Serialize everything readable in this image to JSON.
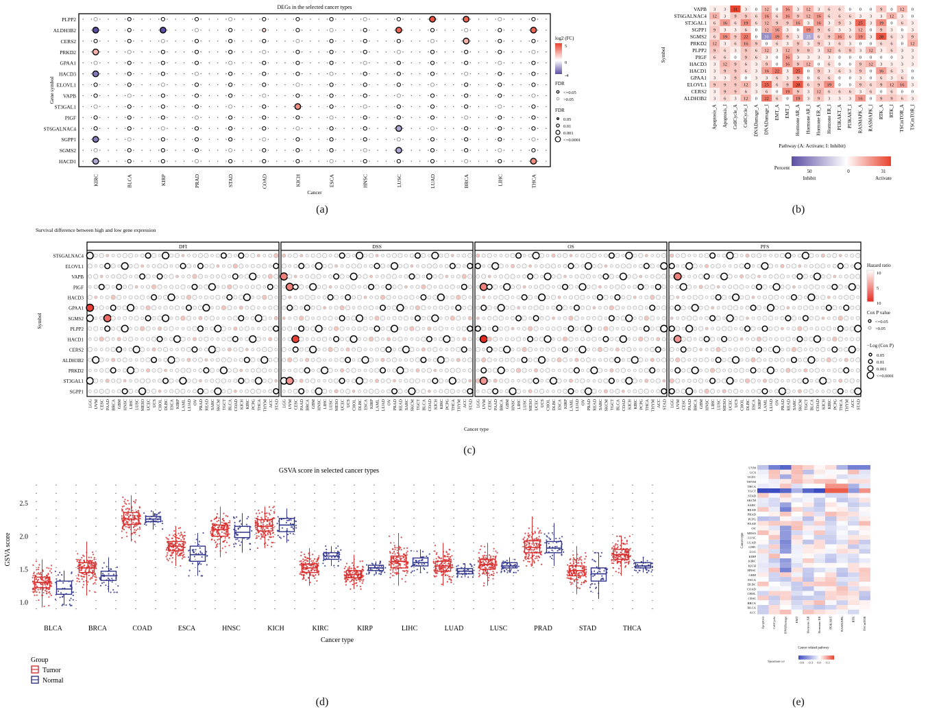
{
  "panel_letters": [
    "(a)",
    "(b)",
    "(c)",
    "(d)",
    "(e)"
  ],
  "chart_data": [
    {
      "id": "a",
      "type": "scatter",
      "title": "DEGs in the selected cancer types",
      "xlabel": "Cancer",
      "ylabel": "Gene symbol",
      "categories": [
        "KIRC",
        "BLCA",
        "KIRP",
        "PRAD",
        "STAD",
        "COAD",
        "KICH",
        "ESCA",
        "HNSC",
        "LUSC",
        "LUAD",
        "BRCA",
        "LIHC",
        "THCA"
      ],
      "genes": [
        "PLPP2",
        "ALDH3B2",
        "CERS2",
        "PRKD2",
        "GPAA1",
        "HACD3",
        "ELOVL1",
        "VAPB",
        "ST3GAL1",
        "PIGF",
        "ST6GALNAC4",
        "SGPP1",
        "SGMS2",
        "HACD1"
      ],
      "values": [
        [
          0,
          -0.5,
          0,
          0,
          0,
          0,
          0,
          0,
          0,
          0,
          4.5,
          4,
          0,
          0
        ],
        [
          -4,
          0,
          -4,
          0,
          0,
          1,
          0,
          0,
          0,
          4,
          0,
          0,
          0,
          4
        ],
        [
          0,
          0,
          0,
          0,
          0,
          0,
          0,
          0,
          0,
          0,
          0,
          2,
          0,
          0
        ],
        [
          2,
          0,
          0,
          0,
          0,
          0,
          0,
          0,
          0,
          0,
          0,
          0,
          0,
          0
        ],
        [
          0,
          0,
          0,
          0,
          0,
          0,
          0,
          0,
          0,
          0,
          0,
          0,
          0,
          0
        ],
        [
          -3,
          0,
          0,
          0,
          0,
          0,
          0,
          0,
          0,
          0,
          0,
          0,
          0,
          0
        ],
        [
          0,
          0,
          0,
          0,
          0,
          0,
          0,
          0,
          0,
          0,
          0,
          0,
          0,
          0
        ],
        [
          0,
          0,
          0,
          0,
          0,
          0,
          0,
          0,
          0,
          0,
          0,
          0,
          0,
          0
        ],
        [
          0,
          0,
          0,
          0,
          0,
          0,
          3,
          0,
          0,
          0,
          0,
          0,
          0,
          0
        ],
        [
          0,
          0,
          0,
          0,
          0,
          0,
          0,
          0,
          0,
          0,
          0,
          0,
          0,
          0
        ],
        [
          0,
          0,
          0,
          0,
          0,
          0,
          0,
          0,
          0,
          -2,
          0,
          0,
          0,
          0
        ],
        [
          -3,
          0,
          0,
          0,
          0,
          0,
          0,
          0,
          0,
          0,
          0,
          0,
          0,
          0
        ],
        [
          0,
          0,
          0,
          0,
          0,
          0,
          0,
          0,
          0,
          -2,
          0,
          0,
          0,
          0
        ],
        [
          -2,
          0,
          0,
          0,
          0,
          0,
          0,
          0,
          0,
          0,
          0,
          0,
          0,
          3
        ]
      ],
      "color_legend_title": "log2 (FC)",
      "color_ticks": [
        "5",
        "0",
        "-4"
      ],
      "fdr_legend": {
        "title": "FDR",
        "items": [
          "<=0.05",
          ">0.05"
        ]
      },
      "size_legend": {
        "title": "FDR",
        "items": [
          "0.05",
          "0.01",
          "0.001",
          "<=0.0001"
        ]
      },
      "colors": {
        "low": "#5b4ea3",
        "mid": "#ffffff",
        "high": "#e8412c"
      }
    },
    {
      "id": "b",
      "type": "heatmap",
      "title": "",
      "xlabel": "Pathway (A: Activate; I: Inhibit)",
      "ylabel": "Symbol",
      "rows": [
        "VAPB",
        "ST6GALNAC4",
        "ST3GAL1",
        "SGPP1",
        "SGMS2",
        "PRKD2",
        "PLPP2",
        "PIGF",
        "HACD3",
        "HACD1",
        "GPAA1",
        "ELOVL1",
        "CERS2",
        "ALDH3B2"
      ],
      "columns": [
        "Apoptosis_A",
        "Apoptosis_I",
        "CellCycle_A",
        "CellCycle_I",
        "DNADamage_A",
        "DNADamage_I",
        "EMT_A",
        "EMT_I",
        "Hormone AR_A",
        "Hormone AR_I",
        "Hormone ER_A",
        "Hormone ER_I",
        "PI3KAKT_A",
        "PI3KAKT_I",
        "RASMAPK_A",
        "RASMAPK_I",
        "RTK_A",
        "RTK_I",
        "TSCmTOR_A",
        "TSCmTOR_I"
      ],
      "values": [
        [
          3,
          3,
          31,
          3,
          0,
          12,
          0,
          16,
          3,
          12,
          3,
          6,
          6,
          0,
          0,
          0,
          9,
          0,
          12,
          0
        ],
        [
          12,
          3,
          9,
          9,
          6,
          16,
          6,
          16,
          9,
          12,
          16,
          6,
          6,
          6,
          3,
          3,
          3,
          12,
          3,
          0
        ],
        [
          6,
          16,
          6,
          19,
          6,
          12,
          9,
          9,
          16,
          3,
          16,
          3,
          9,
          3,
          25,
          3,
          19,
          0,
          6,
          3
        ],
        [
          9,
          3,
          3,
          6,
          0,
          12,
          16,
          3,
          0,
          19,
          9,
          6,
          3,
          3,
          12,
          0,
          9,
          3,
          0,
          3
        ],
        [
          6,
          19,
          9,
          22,
          0,
          -31,
          19,
          9,
          3,
          -25,
          6,
          9,
          16,
          6,
          19,
          3,
          28,
          6,
          3,
          9
        ],
        [
          12,
          3,
          6,
          16,
          9,
          0,
          6,
          3,
          9,
          3,
          9,
          3,
          6,
          3,
          0,
          0,
          6,
          6,
          0,
          12
        ],
        [
          9,
          6,
          3,
          9,
          6,
          12,
          3,
          12,
          9,
          9,
          3,
          12,
          6,
          9,
          3,
          12,
          3,
          6,
          3,
          3
        ],
        [
          6,
          6,
          0,
          9,
          6,
          3,
          0,
          16,
          3,
          3,
          3,
          3,
          0,
          0,
          0,
          0,
          0,
          0,
          3,
          3
        ],
        [
          3,
          12,
          9,
          6,
          3,
          9,
          0,
          16,
          9,
          12,
          0,
          6,
          0,
          0,
          9,
          12,
          3,
          3,
          3,
          3
        ],
        [
          3,
          9,
          9,
          6,
          3,
          16,
          22,
          3,
          25,
          0,
          9,
          3,
          6,
          3,
          9,
          0,
          16,
          6,
          3,
          0
        ],
        [
          3,
          3,
          9,
          0,
          3,
          3,
          6,
          3,
          9,
          0,
          6,
          6,
          0,
          0,
          3,
          0,
          6,
          3,
          6,
          0
        ],
        [
          9,
          9,
          9,
          12,
          3,
          25,
          6,
          9,
          28,
          6,
          9,
          19,
          0,
          0,
          9,
          6,
          9,
          12,
          16,
          3
        ],
        [
          3,
          9,
          9,
          6,
          3,
          6,
          0,
          19,
          9,
          3,
          12,
          6,
          6,
          6,
          3,
          6,
          0,
          6,
          0,
          0
        ],
        [
          3,
          6,
          3,
          12,
          0,
          22,
          6,
          0,
          19,
          3,
          9,
          3,
          3,
          3,
          16,
          0,
          9,
          9,
          6,
          3
        ]
      ],
      "legend_title": "Percent",
      "legend_ticks": [
        "50",
        "0",
        "31"
      ],
      "legend_labels": [
        "Inhibit",
        "Activate"
      ],
      "colors": {
        "low": "#5b4ea3",
        "mid": "#ffffff",
        "high": "#e8412c"
      }
    },
    {
      "id": "c",
      "type": "scatter",
      "title": "Survival difference between high and low gene expression",
      "xlabel": "Cancer type",
      "ylabel": "Symbol",
      "facets": [
        "DFI",
        "DSS",
        "OS",
        "PFS"
      ],
      "genes": [
        "ST6GALNAC4",
        "ELOVL1",
        "VAPB",
        "PIGF",
        "HACD3",
        "GPAA1",
        "SGMS2",
        "PLPP2",
        "HACD1",
        "CERS2",
        "ALDH3B2",
        "PRKD2",
        "ST3GAL1",
        "SGPP1"
      ],
      "cancers": {
        "DFI": [
          "LGG",
          "UVM",
          "CESC",
          "PAAD",
          "BRCA",
          "GBM",
          "HNSC",
          "LIHC",
          "LUSC",
          "MESO",
          "UCEC",
          "UCS",
          "CHOL",
          "DLBC",
          "ESCA",
          "KIRP",
          "LAML",
          "LUAD",
          "OV",
          "PRAD",
          "READ",
          "SARC",
          "SKCM",
          "TGCT",
          "BLCA",
          "COAD",
          "KICH",
          "KIRC",
          "PCPG",
          "THCA",
          "THYM",
          "ACC",
          "STAD"
        ],
        "DSS": [
          "LGG",
          "UVM",
          "CESC",
          "PAAD",
          "BRCA",
          "GBM",
          "HNSC",
          "LIHC",
          "LUSC",
          "MESO",
          "UCEC",
          "UCS",
          "CHOL",
          "DLBC",
          "ESCA",
          "KIRP",
          "LAML",
          "LUAD",
          "OV",
          "PRAD",
          "READ",
          "SARC",
          "SKCM",
          "TGCT",
          "BLCA",
          "COAD",
          "KICH",
          "KIRC",
          "PCPG",
          "THCA",
          "THYM",
          "ACC",
          "STAD"
        ],
        "OS": [
          "LGG",
          "UVM",
          "CESC",
          "PAAD",
          "BRCA",
          "GBM",
          "HNSC",
          "LIHC",
          "LUSC",
          "MESO",
          "UCEC",
          "UCS",
          "CHOL",
          "DLBC",
          "ESCA",
          "KIRP",
          "LAML",
          "LUAD",
          "OV",
          "PRAD",
          "READ",
          "SARC",
          "SKCM",
          "TGCT",
          "BLCA",
          "COAD",
          "KICH",
          "KIRC",
          "PCPG",
          "THCA",
          "THYM",
          "ACC",
          "STAD"
        ],
        "PFS": [
          "LGG",
          "UVM",
          "CESC",
          "PAAD",
          "BRCA",
          "GBM",
          "HNSC",
          "LIHC",
          "LUSC",
          "MESO",
          "UCEC",
          "UCS",
          "CHOL",
          "DLBC",
          "ESCA",
          "KIRP",
          "LAML",
          "LUAD",
          "OV",
          "PRAD",
          "READ",
          "SARC",
          "SKCM",
          "TGCT",
          "BLCA",
          "COAD",
          "KICH",
          "KIRC",
          "PCPG",
          "THCA",
          "THYM",
          "ACC",
          "STAD"
        ]
      },
      "highlights": [
        {
          "facet": "DFI",
          "gene": "GPAA1",
          "cancer": "LGG",
          "hr": 9
        },
        {
          "facet": "DFI",
          "gene": "SGMS2",
          "cancer": "PAAD",
          "hr": 7
        },
        {
          "facet": "DSS",
          "gene": "HACD1",
          "cancer": "CESC",
          "hr": 9
        },
        {
          "facet": "DSS",
          "gene": "VAPB",
          "cancer": "LGG",
          "hr": 6
        },
        {
          "facet": "DSS",
          "gene": "PIGF",
          "cancer": "UVM",
          "hr": 6
        },
        {
          "facet": "DSS",
          "gene": "ST3GAL1",
          "cancer": "UVM",
          "hr": 5
        },
        {
          "facet": "OS",
          "gene": "HACD1",
          "cancer": "UVM",
          "hr": 10
        },
        {
          "facet": "OS",
          "gene": "PIGF",
          "cancer": "UVM",
          "hr": 6
        },
        {
          "facet": "OS",
          "gene": "ST3GAL1",
          "cancer": "UVM",
          "hr": 5
        },
        {
          "facet": "PFS",
          "gene": "VAPB",
          "cancer": "UVM",
          "hr": 6
        },
        {
          "facet": "PFS",
          "gene": "HACD1",
          "cancer": "UVM",
          "hr": 5
        }
      ],
      "hr_legend": {
        "title": "Hazard ratio",
        "ticks": [
          "10",
          "5",
          "10"
        ]
      },
      "p_legend": {
        "title": "Cox P value",
        "items": [
          "<=0.05",
          ">0.05"
        ]
      },
      "size_legend": {
        "title": "−Log (Cox P)",
        "items": [
          "0.05",
          "0.01",
          "0.001",
          "<=0.0001"
        ]
      }
    },
    {
      "id": "d",
      "type": "box",
      "title": "GSVA score in selected cancer types",
      "xlabel": "Cancer type",
      "ylabel": "GSVA score",
      "categories": [
        "BLCA",
        "BRCA",
        "COAD",
        "ESCA",
        "HNSC",
        "KICH",
        "KIRC",
        "KIRP",
        "LIHC",
        "LUAD",
        "LUSC",
        "PRAD",
        "STAD",
        "THCA"
      ],
      "ylim": [
        0.75,
        2.85
      ],
      "yticks": [
        "1.0",
        "1.5",
        "2.0",
        "2.5"
      ],
      "legend_title": "Group",
      "series": [
        {
          "name": "Tumor",
          "color": "#d62d2d",
          "median": [
            1.3,
            1.52,
            2.26,
            1.85,
            2.1,
            2.15,
            1.52,
            1.42,
            1.62,
            1.55,
            1.57,
            1.83,
            1.48,
            1.72
          ],
          "q1": [
            1.22,
            1.45,
            2.18,
            1.78,
            2.0,
            2.08,
            1.45,
            1.37,
            1.52,
            1.47,
            1.5,
            1.75,
            1.4,
            1.65
          ],
          "q3": [
            1.38,
            1.6,
            2.36,
            1.92,
            2.17,
            2.25,
            1.58,
            1.48,
            1.7,
            1.62,
            1.65,
            1.93,
            1.55,
            1.8
          ],
          "min": [
            0.92,
            1.1,
            1.92,
            1.55,
            1.68,
            1.82,
            1.25,
            1.2,
            1.25,
            1.25,
            1.25,
            1.55,
            1.12,
            1.4
          ],
          "max": [
            1.65,
            1.92,
            2.62,
            2.15,
            2.45,
            2.45,
            1.82,
            1.72,
            2.05,
            1.9,
            1.9,
            2.3,
            1.85,
            2.0
          ]
        },
        {
          "name": "Normal",
          "color": "#2f3289",
          "median": [
            1.2,
            1.4,
            2.26,
            1.72,
            2.06,
            2.17,
            1.7,
            1.52,
            1.6,
            1.47,
            1.55,
            1.82,
            1.43,
            1.55
          ],
          "q1": [
            1.12,
            1.33,
            2.22,
            1.62,
            1.98,
            2.07,
            1.65,
            1.48,
            1.55,
            1.43,
            1.52,
            1.75,
            1.32,
            1.52
          ],
          "q3": [
            1.32,
            1.47,
            2.3,
            1.85,
            2.15,
            2.27,
            1.75,
            1.56,
            1.67,
            1.51,
            1.6,
            1.92,
            1.52,
            1.6
          ],
          "min": [
            0.95,
            1.15,
            2.1,
            1.4,
            1.75,
            1.9,
            1.55,
            1.42,
            1.45,
            1.38,
            1.45,
            1.55,
            1.05,
            1.45
          ],
          "max": [
            1.48,
            1.68,
            2.38,
            2.05,
            2.35,
            2.42,
            1.85,
            1.62,
            1.8,
            1.58,
            1.68,
            2.2,
            1.75,
            1.68
          ]
        }
      ]
    },
    {
      "id": "e",
      "type": "heatmap",
      "title": "",
      "xlabel": "Cancer related pathway",
      "ylabel": "Cancer type",
      "rows": [
        "UVM",
        "UCS",
        "UCEC",
        "THYM",
        "THCA",
        "TGCT",
        "STAD",
        "SKCM",
        "SARC",
        "READ",
        "PRAD",
        "PCPG",
        "PAAD",
        "OV",
        "MESO",
        "LUSC",
        "LUAD",
        "LIHC",
        "LGG",
        "KIRP",
        "KIRC",
        "KICH",
        "HNSC",
        "GBM",
        "ESCA",
        "DLBC",
        "COAD",
        "CHOL",
        "CESC",
        "BRCA",
        "BLCA",
        "ACC"
      ],
      "columns": [
        "Apoptosis",
        "CellCycle",
        "DNADamage",
        "EMT",
        "Hormone AR",
        "Hormone ER",
        "PI3KAKT",
        "RASMAPK",
        "RTK",
        "TSCmTOR"
      ],
      "legend_title": "Spearman cor",
      "legend_ticks": [
        "−0.6",
        "−0.3",
        "0.0",
        "0.3"
      ],
      "colors": {
        "low": "#3b4cc0",
        "mid": "#ffffff",
        "high": "#e8412c"
      }
    }
  ]
}
